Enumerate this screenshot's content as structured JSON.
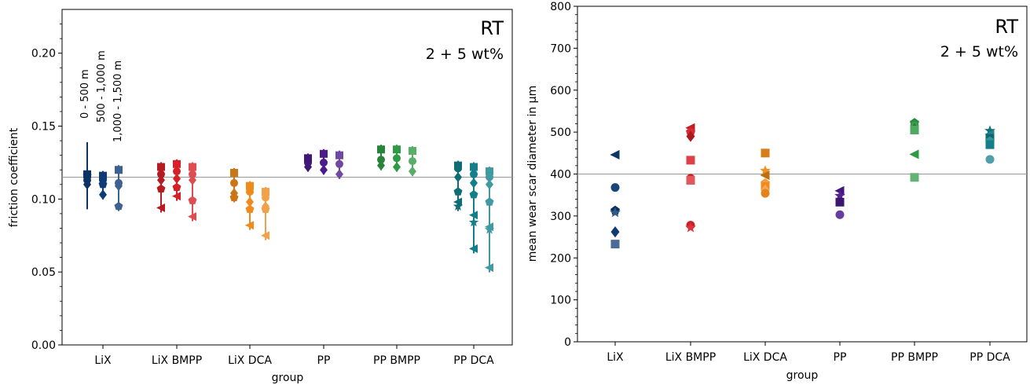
{
  "chart_data": [
    {
      "type": "scatter",
      "title": "",
      "xlabel": "group",
      "ylabel": "friction coefficient",
      "ylim": [
        0,
        0.23
      ],
      "yticks": [
        "0.00",
        "0.05",
        "0.10",
        "0.15",
        "0.20"
      ],
      "categories": [
        "LiX",
        "LiX BMPP",
        "LiX DCA",
        "PP",
        "PP BMPP",
        "PP DCA"
      ],
      "reference_line": 0.115,
      "annotation": {
        "main": "RT",
        "sub": "2 + 5 wt%"
      },
      "distance_labels": [
        "0 - 500 m",
        "500 - 1,000 m",
        "1,000 - 1,500 m"
      ],
      "group_colors": [
        "#0d3b73",
        "#d62027",
        "#f08a1c",
        "#4b1a8c",
        "#2f9a45",
        "#137f8a"
      ],
      "series": [
        {
          "group": "LiX",
          "color": "#0d3b73",
          "points": [
            {
              "offset": -1,
              "values": [
                0.117,
                0.113,
                0.11,
                0.116
              ]
            },
            {
              "offset": 0,
              "values": [
                0.116,
                0.113,
                0.103,
                0.11
              ]
            },
            {
              "offset": 1,
              "values": [
                0.12,
                0.111,
                0.109,
                0.095
              ]
            }
          ]
        },
        {
          "group": "LiX BMPP",
          "color": "#d62027",
          "points": [
            {
              "offset": -1,
              "values": [
                0.122,
                0.117,
                0.113,
                0.107,
                0.094
              ]
            },
            {
              "offset": 0,
              "values": [
                0.124,
                0.119,
                0.114,
                0.108,
                0.102
              ]
            },
            {
              "offset": 1,
              "values": [
                0.122,
                0.117,
                0.113,
                0.099,
                0.088
              ]
            }
          ]
        },
        {
          "group": "LiX DCA",
          "color": "#f08a1c",
          "points": [
            {
              "offset": -1,
              "values": [
                0.118,
                0.111,
                0.104,
                0.101
              ]
            },
            {
              "offset": 0,
              "values": [
                0.109,
                0.105,
                0.098,
                0.093,
                0.082
              ]
            },
            {
              "offset": 1,
              "values": [
                0.105,
                0.101,
                0.095,
                0.093,
                0.075
              ]
            }
          ]
        },
        {
          "group": "PP",
          "color": "#4b1a8c",
          "points": [
            {
              "offset": -1,
              "values": [
                0.128,
                0.125,
                0.122
              ]
            },
            {
              "offset": 0,
              "values": [
                0.131,
                0.125,
                0.12
              ]
            },
            {
              "offset": 1,
              "values": [
                0.13,
                0.124,
                0.117
              ]
            }
          ]
        },
        {
          "group": "PP BMPP",
          "color": "#2f9a45",
          "points": [
            {
              "offset": -1,
              "values": [
                0.134,
                0.127,
                0.123
              ]
            },
            {
              "offset": 0,
              "values": [
                0.134,
                0.128,
                0.122
              ]
            },
            {
              "offset": 1,
              "values": [
                0.133,
                0.126,
                0.119
              ]
            }
          ]
        },
        {
          "group": "PP DCA",
          "color": "#137f8a",
          "points": [
            {
              "offset": -1,
              "values": [
                0.123,
                0.121,
                0.115,
                0.105,
                0.098,
                0.095
              ]
            },
            {
              "offset": 0,
              "values": [
                0.122,
                0.117,
                0.111,
                0.103,
                0.089,
                0.084,
                0.066
              ]
            },
            {
              "offset": 1,
              "values": [
                0.119,
                0.115,
                0.11,
                0.098,
                0.081,
                0.079,
                0.053
              ]
            }
          ]
        }
      ]
    },
    {
      "type": "scatter",
      "title": "",
      "xlabel": "group",
      "ylabel": "mean wear scar diameter in µm",
      "ylim": [
        0,
        800
      ],
      "yticks": [
        "0",
        "100",
        "200",
        "300",
        "400",
        "500",
        "600",
        "700",
        "800"
      ],
      "categories": [
        "LiX",
        "LiX BMPP",
        "LiX DCA",
        "PP",
        "PP BMPP",
        "PP DCA"
      ],
      "reference_line": 400,
      "annotation": {
        "main": "RT",
        "sub": "2 + 5 wt%"
      },
      "series": [
        {
          "group": "LiX",
          "color": "#0d3b73",
          "points": [
            {
              "marker": "triangle-left",
              "value": 446
            },
            {
              "marker": "circle",
              "value": 368
            },
            {
              "marker": "pentagon",
              "value": 313
            },
            {
              "marker": "star",
              "value": 308
            },
            {
              "marker": "diamond",
              "value": 262
            },
            {
              "marker": "square",
              "value": 233
            }
          ]
        },
        {
          "group": "LiX BMPP",
          "color": "#d62027",
          "points": [
            {
              "marker": "triangle-left",
              "value": 510
            },
            {
              "marker": "pentagon",
              "value": 500
            },
            {
              "marker": "diamond",
              "value": 490
            },
            {
              "marker": "square",
              "value": 433
            },
            {
              "marker": "circle",
              "value": 390
            },
            {
              "marker": "square",
              "value": 385
            },
            {
              "marker": "circle",
              "value": 278
            },
            {
              "marker": "star",
              "value": 272
            }
          ]
        },
        {
          "group": "LiX DCA",
          "color": "#f08a1c",
          "points": [
            {
              "marker": "square",
              "value": 450
            },
            {
              "marker": "star",
              "value": 408
            },
            {
              "marker": "triangle-left",
              "value": 397
            },
            {
              "marker": "pentagon",
              "value": 378
            },
            {
              "marker": "square",
              "value": 370
            },
            {
              "marker": "diamond",
              "value": 362
            },
            {
              "marker": "circle",
              "value": 354
            }
          ]
        },
        {
          "group": "PP",
          "color": "#4b1a8c",
          "points": [
            {
              "marker": "triangle-left",
              "value": 360
            },
            {
              "marker": "star",
              "value": 348
            },
            {
              "marker": "square",
              "value": 333
            },
            {
              "marker": "circle",
              "value": 303
            }
          ]
        },
        {
          "group": "PP BMPP",
          "color": "#2f9a45",
          "points": [
            {
              "marker": "pentagon",
              "value": 522
            },
            {
              "marker": "circle",
              "value": 515
            },
            {
              "marker": "diamond",
              "value": 508
            },
            {
              "marker": "square",
              "value": 505
            },
            {
              "marker": "triangle-left",
              "value": 447
            },
            {
              "marker": "square",
              "value": 392
            }
          ]
        },
        {
          "group": "PP DCA",
          "color": "#137f8a",
          "points": [
            {
              "marker": "star",
              "value": 503
            },
            {
              "marker": "triangle-left",
              "value": 495
            },
            {
              "marker": "square",
              "value": 485
            },
            {
              "marker": "pentagon",
              "value": 478
            },
            {
              "marker": "square",
              "value": 470
            },
            {
              "marker": "circle",
              "value": 435
            }
          ]
        }
      ]
    }
  ]
}
